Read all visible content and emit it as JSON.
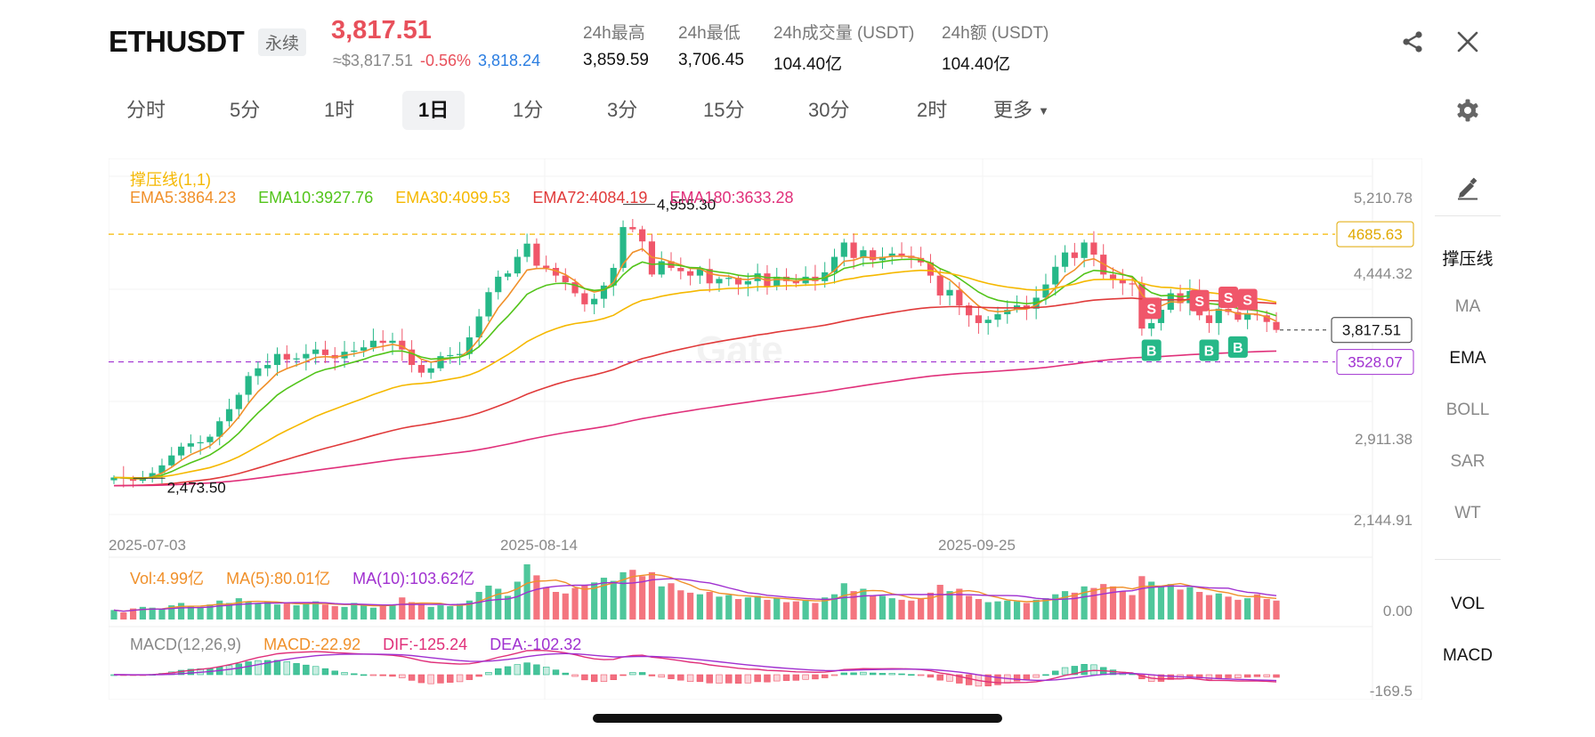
{
  "header": {
    "symbol": "ETHUSDT",
    "contract_type": "永续",
    "last_price": "3,817.51",
    "approx_price": "≈$3,817.51",
    "change_pct": "-0.56%",
    "mark_price": "3,818.24",
    "stats": [
      {
        "label": "24h最高",
        "value": "3,859.59"
      },
      {
        "label": "24h最低",
        "value": "3,706.45"
      },
      {
        "label": "24h成交量 (USDT)",
        "value": "104.40亿"
      },
      {
        "label": "24h额 (USDT)",
        "value": "104.40亿"
      }
    ],
    "share_icon": "share-icon",
    "close_icon": "close-icon",
    "settings_icon": "gear-icon"
  },
  "timeframes": [
    {
      "label": "分时",
      "active": false
    },
    {
      "label": "5分",
      "active": false
    },
    {
      "label": "1时",
      "active": false
    },
    {
      "label": "1日",
      "active": true
    },
    {
      "label": "1分",
      "active": false
    },
    {
      "label": "3分",
      "active": false
    },
    {
      "label": "15分",
      "active": false
    },
    {
      "label": "30分",
      "active": false
    },
    {
      "label": "2时",
      "active": false
    },
    {
      "label": "更多",
      "active": false
    }
  ],
  "chart_legend": {
    "support_resistance": "撑压线(1,1)",
    "ema": [
      {
        "label": "EMA5:3864.23",
        "color": "#f0902a"
      },
      {
        "label": "EMA10:3927.76",
        "color": "#52c41a"
      },
      {
        "label": "EMA30:4099.53",
        "color": "#f5b800"
      },
      {
        "label": "EMA72:4084.19",
        "color": "#e03a3a"
      },
      {
        "label": "EMA180:3633.28",
        "color": "#e0307a"
      }
    ],
    "vol": [
      {
        "label": "Vol:4.99亿",
        "color": "#f0902a"
      },
      {
        "label": "MA(5):80.01亿",
        "color": "#f0902a"
      },
      {
        "label": "MA(10):103.62亿",
        "color": "#a030d0"
      }
    ],
    "macd": [
      {
        "label": "MACD(12,26,9)",
        "color": "#888888"
      },
      {
        "label": "MACD:-22.92",
        "color": "#f0902a"
      },
      {
        "label": "DIF:-125.24",
        "color": "#e0307a"
      },
      {
        "label": "DEA:-102.32",
        "color": "#a030d0"
      }
    ]
  },
  "chart_data": {
    "type": "candlestick",
    "x_ticks": [
      "2025-07-03",
      "2025-08-14",
      "2025-09-25"
    ],
    "y_ticks": [
      "5,210.78",
      "4,444.32",
      "2,911.38",
      "2,144.91"
    ],
    "ylim": [
      2144.91,
      5210.78
    ],
    "resistance_line": {
      "value": "4685.63",
      "color": "#f5b800"
    },
    "support_line": {
      "value": "3528.07",
      "color": "#a030d0"
    },
    "last_price_label": "3,817.51",
    "high_marker": "4,955.30",
    "low_marker": "2,473.50",
    "vol_axis_label": "0.00",
    "macd_axis_label": "-169.5",
    "signals": [
      {
        "type": "S"
      },
      {
        "type": "S"
      },
      {
        "type": "S"
      },
      {
        "type": "S"
      },
      {
        "type": "B"
      },
      {
        "type": "B"
      },
      {
        "type": "B"
      }
    ],
    "up_color": "#26b888",
    "down_color": "#f0566a",
    "closes": [
      2480,
      2470,
      2450,
      2470,
      2520,
      2590,
      2680,
      2760,
      2790,
      2800,
      2850,
      2990,
      3100,
      3230,
      3400,
      3470,
      3500,
      3600,
      3550,
      3560,
      3600,
      3640,
      3590,
      3560,
      3620,
      3630,
      3660,
      3720,
      3700,
      3720,
      3640,
      3500,
      3430,
      3470,
      3580,
      3590,
      3600,
      3750,
      3940,
      4160,
      4300,
      4330,
      4480,
      4600,
      4400,
      4380,
      4310,
      4250,
      4150,
      4050,
      4100,
      4220,
      4380,
      4750,
      4730,
      4620,
      4320,
      4440,
      4380,
      4350,
      4310,
      4370,
      4240,
      4280,
      4290,
      4230,
      4260,
      4330,
      4210,
      4300,
      4260,
      4240,
      4300,
      4260,
      4340,
      4480,
      4610,
      4470,
      4540,
      4450,
      4480,
      4510,
      4490,
      4470,
      4430,
      4310,
      4130,
      4180,
      4040,
      3950,
      3880,
      3910,
      3960,
      4000,
      4040,
      4010,
      4110,
      4230,
      4390,
      4520,
      4470,
      4610,
      4500,
      4320,
      4270,
      4240,
      4230,
      3830,
      3880,
      4000,
      4150,
      4060,
      4170,
      3950,
      3880,
      4010,
      3980,
      3910,
      3960,
      3950,
      3890,
      3817.51
    ],
    "volumes": [
      1.2,
      0.9,
      1.4,
      1.6,
      1.5,
      1.3,
      1.8,
      2.1,
      1.7,
      1.6,
      1.9,
      2.4,
      2.1,
      2.7,
      2.3,
      2.0,
      2.2,
      1.9,
      2.1,
      1.8,
      2.0,
      2.3,
      1.9,
      1.7,
      1.6,
      2.1,
      1.8,
      1.5,
      1.7,
      1.9,
      2.8,
      2.2,
      1.9,
      1.6,
      1.8,
      1.7,
      2.0,
      2.4,
      3.5,
      4.3,
      3.9,
      3.0,
      4.8,
      7.0,
      5.6,
      4.1,
      3.5,
      3.3,
      4.0,
      4.3,
      4.7,
      5.3,
      4.9,
      6.0,
      6.3,
      5.5,
      6.0,
      4.2,
      4.6,
      3.7,
      3.4,
      3.2,
      3.5,
      2.9,
      3.1,
      2.6,
      2.8,
      3.0,
      2.5,
      2.7,
      2.2,
      2.3,
      2.5,
      2.1,
      2.8,
      3.2,
      4.6,
      3.6,
      3.9,
      3.1,
      3.0,
      2.7,
      2.5,
      2.4,
      2.6,
      3.4,
      4.4,
      3.6,
      3.9,
      3.0,
      2.6,
      2.2,
      2.3,
      2.4,
      2.3,
      2.1,
      2.5,
      2.7,
      3.2,
      3.6,
      3.4,
      4.2,
      4.0,
      4.5,
      4.2,
      3.6,
      3.1,
      5.5,
      4.8,
      4.2,
      4.5,
      3.8,
      4.1,
      3.5,
      3.1,
      3.3,
      2.9,
      2.5,
      2.7,
      3.2,
      2.6,
      2.4
    ]
  },
  "right_panel": [
    {
      "label": "撑压线",
      "active": true
    },
    {
      "label": "MA",
      "active": false
    },
    {
      "label": "EMA",
      "active": true
    },
    {
      "label": "BOLL",
      "active": false
    },
    {
      "label": "SAR",
      "active": false
    },
    {
      "label": "WT",
      "active": false
    },
    {
      "label": "VOL",
      "active": true
    },
    {
      "label": "MACD",
      "active": true
    }
  ]
}
